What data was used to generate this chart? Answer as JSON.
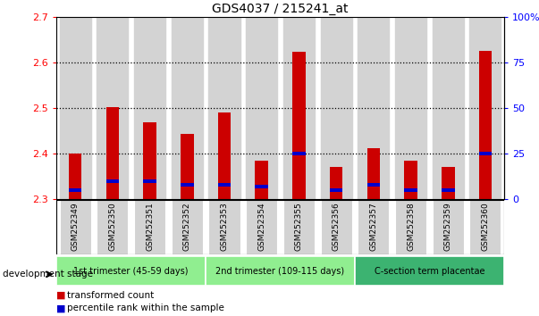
{
  "title": "GDS4037 / 215241_at",
  "samples": [
    "GSM252349",
    "GSM252350",
    "GSM252351",
    "GSM252352",
    "GSM252353",
    "GSM252354",
    "GSM252355",
    "GSM252356",
    "GSM252357",
    "GSM252358",
    "GSM252359",
    "GSM252360"
  ],
  "red_values": [
    2.401,
    2.502,
    2.469,
    2.444,
    2.491,
    2.385,
    2.625,
    2.371,
    2.412,
    2.385,
    2.37,
    2.627
  ],
  "blue_percentile": [
    5,
    10,
    10,
    8,
    8,
    7,
    25,
    5,
    8,
    5,
    5,
    25
  ],
  "ymin": 2.3,
  "ymax": 2.7,
  "yticks": [
    2.3,
    2.4,
    2.5,
    2.6,
    2.7
  ],
  "y2ticks_vals": [
    0,
    25,
    50,
    75,
    100
  ],
  "y2ticks_labels": [
    "0",
    "25",
    "50",
    "75",
    "100%"
  ],
  "groups": [
    {
      "label": "1st trimester (45-59 days)",
      "start": 0,
      "end": 3,
      "color": "#90ee90"
    },
    {
      "label": "2nd trimester (109-115 days)",
      "start": 4,
      "end": 7,
      "color": "#90ee90"
    },
    {
      "label": "C-section term placentae",
      "start": 8,
      "end": 11,
      "color": "#3cb371"
    }
  ],
  "bar_width": 0.35,
  "red_color": "#cc0000",
  "blue_color": "#0000cc",
  "bg_col_color": "#d3d3d3",
  "white": "#ffffff",
  "title_fontsize": 10,
  "axis_fontsize": 8,
  "sample_fontsize": 6.5,
  "group_fontsize": 7,
  "legend_fontsize": 7.5
}
